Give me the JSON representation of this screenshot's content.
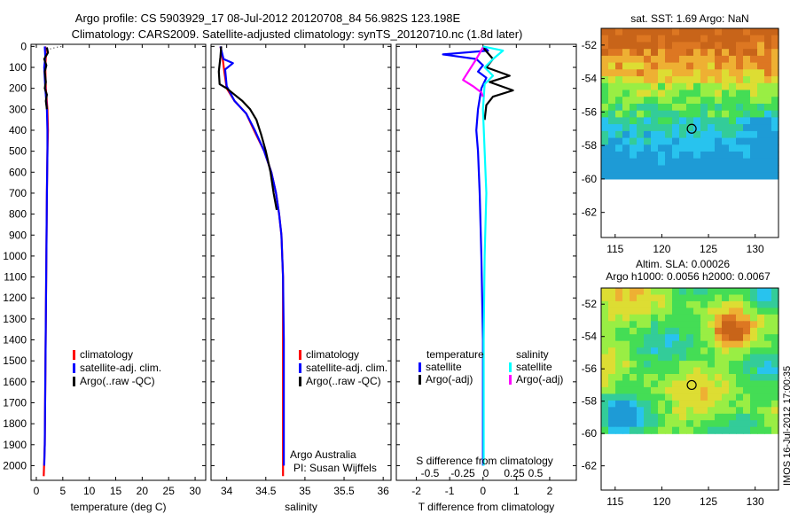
{
  "header": {
    "title_line1": "Argo profile: CS 5903929_17 08-Jul-2012 20120708_84 56.982S 123.198E",
    "title_line2": "Climatology: CARS2009. Satellite-adjusted climatology: synTS_20120710.nc (1.8d later)"
  },
  "side_stamp": "IMOS 16-Jul-2012 17:00:35",
  "colors": {
    "climatology": "#ff0000",
    "satellite": "#0000ff",
    "argo": "#000000",
    "sat_salinity": "#00ffff",
    "argo_salinity": "#ff00ff"
  },
  "chart_data": [
    {
      "id": "temperature",
      "type": "line",
      "xlabel": "temperature (deg C)",
      "ylabel": "",
      "xlim": [
        -1,
        32
      ],
      "ylim": [
        2070,
        -10
      ],
      "xticks": [
        0,
        5,
        10,
        15,
        20,
        25,
        30
      ],
      "yticks": [
        0,
        100,
        200,
        300,
        400,
        500,
        600,
        700,
        800,
        900,
        1000,
        1100,
        1200,
        1300,
        1400,
        1500,
        1600,
        1700,
        1800,
        1900,
        2000
      ],
      "legend": {
        "position": "lower-center",
        "entries": [
          "climatology",
          "satellite-adj. clim.",
          "Argo(..raw -QC)"
        ]
      },
      "series": [
        {
          "name": "climatology",
          "color": "#ff0000",
          "points": [
            [
              1.7,
              0
            ],
            [
              1.8,
              50
            ],
            [
              1.7,
              100
            ],
            [
              1.8,
              200
            ],
            [
              2.1,
              300
            ],
            [
              2.2,
              400
            ],
            [
              2.1,
              500
            ],
            [
              2.0,
              700
            ],
            [
              1.9,
              1000
            ],
            [
              1.8,
              1300
            ],
            [
              1.7,
              1600
            ],
            [
              1.6,
              1900
            ],
            [
              1.4,
              2050
            ]
          ]
        },
        {
          "name": "satellite-adj. clim.",
          "color": "#0000ff",
          "points": [
            [
              1.6,
              0
            ],
            [
              1.7,
              50
            ],
            [
              1.5,
              100
            ],
            [
              1.7,
              200
            ],
            [
              2.0,
              300
            ],
            [
              2.1,
              400
            ],
            [
              2.1,
              500
            ],
            [
              2.0,
              700
            ],
            [
              1.9,
              1000
            ],
            [
              1.8,
              1300
            ],
            [
              1.7,
              1600
            ],
            [
              1.6,
              1900
            ],
            [
              1.5,
              2000
            ]
          ]
        },
        {
          "name": "Argo(..raw -QC)",
          "color": "#000000",
          "points": [
            [
              2.0,
              5
            ],
            [
              2.2,
              30
            ],
            [
              1.5,
              60
            ],
            [
              1.9,
              90
            ],
            [
              1.6,
              120
            ],
            [
              1.8,
              170
            ],
            [
              1.6,
              200
            ],
            [
              2.0,
              230
            ],
            [
              1.8,
              260
            ],
            [
              2.0,
              300
            ]
          ]
        },
        {
          "name": "surface-dots",
          "color": "#000000",
          "points": [
            [
              2.6,
              12
            ],
            [
              3.2,
              8
            ],
            [
              3.8,
              4
            ],
            [
              4.5,
              2
            ],
            [
              5.0,
              0
            ]
          ]
        }
      ]
    },
    {
      "id": "salinity",
      "type": "line",
      "xlabel": "salinity",
      "ylabel": "",
      "xlim": [
        33.8,
        36.1
      ],
      "ylim": [
        2070,
        -10
      ],
      "xticks": [
        34,
        34.5,
        35,
        35.5,
        36
      ],
      "legend": {
        "position": "lower-center",
        "entries": [
          "climatology",
          "satellite-adj. clim.",
          "Argo(..raw -QC)"
        ]
      },
      "annotation": [
        "Argo Australia",
        "PI: Susan Wijffels"
      ],
      "series": [
        {
          "name": "climatology",
          "color": "#ff0000",
          "points": [
            [
              33.92,
              0
            ],
            [
              33.95,
              60
            ],
            [
              33.97,
              120
            ],
            [
              34.0,
              200
            ],
            [
              34.1,
              260
            ],
            [
              34.25,
              320
            ],
            [
              34.35,
              400
            ],
            [
              34.48,
              500
            ],
            [
              34.57,
              600
            ],
            [
              34.63,
              700
            ],
            [
              34.67,
              800
            ],
            [
              34.7,
              900
            ],
            [
              34.72,
              1100
            ],
            [
              34.72,
              1400
            ],
            [
              34.72,
              2050
            ]
          ]
        },
        {
          "name": "satellite-adj. clim.",
          "color": "#0000ff",
          "points": [
            [
              33.92,
              0
            ],
            [
              33.96,
              60
            ],
            [
              34.08,
              80
            ],
            [
              33.98,
              110
            ],
            [
              34.0,
              190
            ],
            [
              34.1,
              260
            ],
            [
              34.25,
              320
            ],
            [
              34.36,
              400
            ],
            [
              34.48,
              500
            ],
            [
              34.57,
              600
            ],
            [
              34.63,
              700
            ],
            [
              34.67,
              800
            ],
            [
              34.7,
              900
            ],
            [
              34.72,
              1100
            ],
            [
              34.73,
              1400
            ],
            [
              34.73,
              2000
            ]
          ]
        },
        {
          "name": "Argo(..raw -QC)",
          "color": "#000000",
          "points": [
            [
              33.93,
              0
            ],
            [
              33.92,
              50
            ],
            [
              33.9,
              120
            ],
            [
              33.91,
              180
            ],
            [
              34.0,
              200
            ],
            [
              34.1,
              230
            ],
            [
              34.2,
              260
            ],
            [
              34.3,
              300
            ],
            [
              34.38,
              350
            ],
            [
              34.44,
              420
            ],
            [
              34.5,
              500
            ],
            [
              34.56,
              600
            ],
            [
              34.6,
              700
            ],
            [
              34.64,
              780
            ]
          ]
        }
      ]
    },
    {
      "id": "differences",
      "type": "line",
      "xlabel": "T difference from climatology",
      "ylabel": "",
      "title_top": "S difference from climatology",
      "xlim": [
        -2.6,
        2.8
      ],
      "ylim": [
        2070,
        -10
      ],
      "xticks": [
        -2,
        -1,
        0,
        1,
        2
      ],
      "top_ticks": [
        "-0.5",
        "-0.25",
        "0",
        "0.25",
        "0.5"
      ],
      "legend": {
        "position": "center",
        "groups": [
          "temperature",
          "salinity"
        ],
        "entries": [
          "satellite",
          "Argo(-adj)",
          "satellite",
          "Argo(-adj)"
        ]
      },
      "series": [
        {
          "name": "temperature satellite",
          "color": "#0000ff",
          "points": [
            [
              0,
              0
            ],
            [
              0.15,
              20
            ],
            [
              -1.2,
              38
            ],
            [
              -0.2,
              60
            ],
            [
              0,
              90
            ],
            [
              -0.15,
              120
            ],
            [
              0.1,
              150
            ],
            [
              -0.05,
              200
            ],
            [
              -0.15,
              300
            ],
            [
              -0.2,
              400
            ],
            [
              -0.15,
              500
            ],
            [
              -0.1,
              700
            ],
            [
              -0.05,
              1000
            ],
            [
              0,
              1400
            ],
            [
              0,
              2000
            ]
          ]
        },
        {
          "name": "temperature Argo(-adj)",
          "color": "#000000",
          "points": [
            [
              0,
              5
            ],
            [
              0.3,
              60
            ],
            [
              0.1,
              100
            ],
            [
              0.8,
              140
            ],
            [
              0.2,
              170
            ],
            [
              0.9,
              210
            ],
            [
              0.3,
              240
            ],
            [
              0.1,
              280
            ],
            [
              0.05,
              350
            ]
          ]
        },
        {
          "name": "salinity satellite",
          "color": "#00ffff",
          "points": [
            [
              0,
              0
            ],
            [
              0.6,
              20
            ],
            [
              0.3,
              60
            ],
            [
              0.05,
              100
            ],
            [
              0.3,
              140
            ],
            [
              0.05,
              180
            ],
            [
              0,
              300
            ],
            [
              0.05,
              500
            ],
            [
              0.1,
              700
            ],
            [
              0.05,
              1000
            ],
            [
              0.02,
              1400
            ],
            [
              0.02,
              2000
            ]
          ]
        },
        {
          "name": "salinity Argo(-adj)",
          "color": "#ff00ff",
          "points": [
            [
              0,
              5
            ],
            [
              -0.2,
              60
            ],
            [
              -0.6,
              160
            ],
            [
              -0.3,
              190
            ],
            [
              -0.05,
              220
            ],
            [
              0,
              240
            ]
          ]
        }
      ]
    },
    {
      "id": "sst-map",
      "type": "heatmap",
      "title": "sat. SST: 1.69 Argo: NaN",
      "xlim": [
        113.5,
        132.5
      ],
      "ylim": [
        -63.5,
        -51
      ],
      "xticks": [
        115,
        120,
        125,
        130
      ],
      "yticks": [
        -52,
        -54,
        -56,
        -58,
        -60,
        -62
      ],
      "data_ymin": -60,
      "palette": [
        "#1e9bd6",
        "#28c3ee",
        "#33cc99",
        "#44dd55",
        "#99ee44",
        "#dddd33",
        "#eeb033",
        "#dd7722",
        "#c86419"
      ],
      "marker": {
        "lon": 123.2,
        "lat": -57.0
      }
    },
    {
      "id": "sla-map",
      "type": "heatmap",
      "title": "Altim. SLA: 0.00026",
      "subtitle": "Argo h1000: 0.0056 h2000: 0.0067",
      "xlim": [
        113.5,
        132.5
      ],
      "ylim": [
        -63.5,
        -51
      ],
      "xticks": [
        115,
        120,
        125,
        130
      ],
      "yticks": [
        -52,
        -54,
        -56,
        -58,
        -60,
        -62
      ],
      "data_ymin": -60,
      "palette": [
        "#1e9bd6",
        "#28c3ee",
        "#33cc99",
        "#44dd55",
        "#99ee44",
        "#dddd33",
        "#eeb033",
        "#dd7722",
        "#c86419"
      ],
      "marker": {
        "lon": 123.2,
        "lat": -57.0
      }
    }
  ]
}
